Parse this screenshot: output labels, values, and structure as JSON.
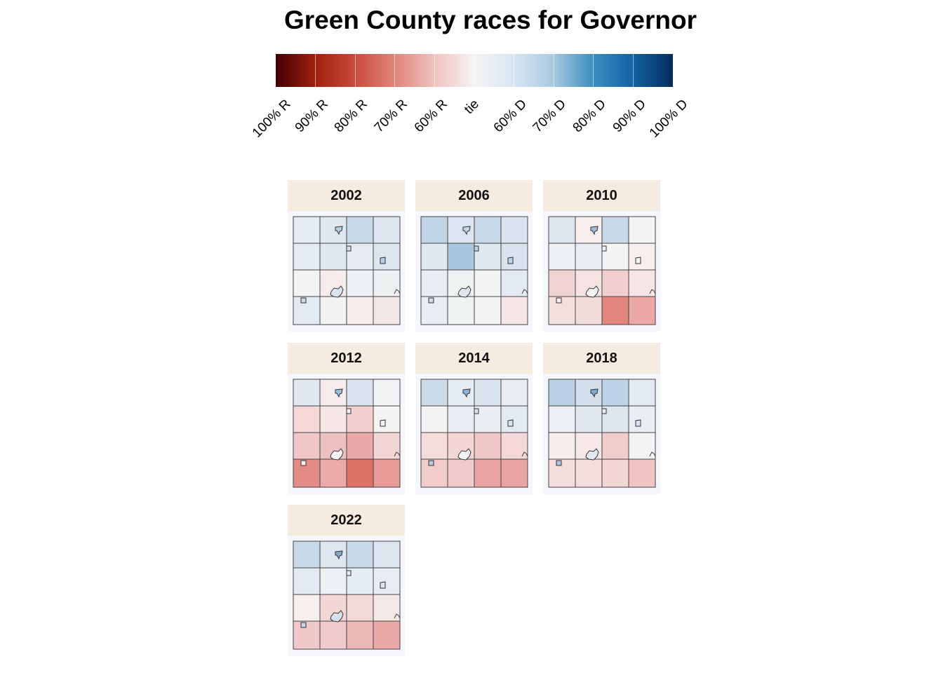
{
  "title": "Green County races for Governor",
  "legend": {
    "labels": [
      "100% R",
      "90% R",
      "80% R",
      "70% R",
      "60% R",
      "tie",
      "60% D",
      "70% D",
      "80% D",
      "90% D",
      "100% D"
    ],
    "colors": [
      "#420003",
      "#a1200f",
      "#d6604d",
      "#f4a582",
      "#f8dcd6",
      "#f4f4f4",
      "#d1e5f0",
      "#92c5de",
      "#2b8cbe",
      "#0a5c9c",
      "#053061"
    ]
  },
  "panels": [
    {
      "year": "2002",
      "cells": [
        [
          "#e5ecf3",
          "#dfe7f0",
          "#c5d9e8",
          "#dde6ef"
        ],
        [
          "#e6ecf3",
          "#dfe7ef",
          "#e7ecf3",
          "#dde5ee"
        ],
        [
          "#f4f4f4",
          "#f6ecec",
          "#eceff3",
          "#eef1f2"
        ],
        [
          "#e4eaf2",
          "#f1f2f3",
          "#f6eded",
          "#f3e6e7"
        ]
      ],
      "towns": [
        "#b7cfe4",
        "#d5e2ee",
        "#b9cee3",
        "#c9d9e8",
        "#d9e4ee"
      ]
    },
    {
      "year": "2006",
      "cells": [
        [
          "#c0d5e6",
          "#dbe5ef",
          "#c8d8e9",
          "#dbe4ee"
        ],
        [
          "#dfe7ef",
          "#a9c7de",
          "#e0e8f0",
          "#d9e3ee"
        ],
        [
          "#e8edf3",
          "#eef2f3",
          "#f3f4f4",
          "#e3eaf2"
        ],
        [
          "#e8eef3",
          "#eef2f3",
          "#f1f3f4",
          "#f4e6e7"
        ]
      ],
      "towns": [
        "#c4d7ea",
        "#c2d6ea",
        "#c0d4e8",
        "#cddbea",
        "#e0e8ef"
      ]
    },
    {
      "year": "2010",
      "cells": [
        [
          "#dce6ef",
          "#f6efee",
          "#c7d8e9",
          "#f4f4f4"
        ],
        [
          "#eef1f3",
          "#eaeef2",
          "#f4f4f4",
          "#f7efee"
        ],
        [
          "#f0d3d3",
          "#f4e3e2",
          "#f1cfcf",
          "#f5e6e5"
        ],
        [
          "#f3dfde",
          "#f2dcdb",
          "#e3867e",
          "#eba8a6"
        ]
      ],
      "towns": [
        "#9dbfde",
        "#f4f4f4",
        "#f2f4f4",
        "#f2ebeb",
        "#f4f4f4"
      ]
    },
    {
      "year": "2012",
      "cells": [
        [
          "#e2e8ef",
          "#f6ecec",
          "#dbe4ee",
          "#f2f3f4"
        ],
        [
          "#f4d8d7",
          "#f4e7e6",
          "#f1d0cf",
          "#f4f4f4"
        ],
        [
          "#f0c7c6",
          "#eec1c1",
          "#eaa8a8",
          "#f2d6d5"
        ],
        [
          "#e38c87",
          "#eba9a8",
          "#de7266",
          "#e89a96"
        ]
      ],
      "towns": [
        "#9dbfde",
        "#f4f4f4",
        "#f4f4f4",
        "#f4f4f4",
        "#f3f1f1"
      ]
    },
    {
      "year": "2014",
      "cells": [
        [
          "#cbdbe8",
          "#e5ecf3",
          "#d9e4ee",
          "#e8edf2"
        ],
        [
          "#f1f3f4",
          "#e7edf3",
          "#ebeff3",
          "#e4eaf2"
        ],
        [
          "#f4dcdb",
          "#f3d7d6",
          "#efc7c6",
          "#f3d8d7"
        ],
        [
          "#f2cccb",
          "#f1cbcb",
          "#e8a3a2",
          "#e9a5a4"
        ]
      ],
      "towns": [
        "#8fb6d9",
        "#dde6ef",
        "#d9e4ee",
        "#b8cfe3",
        "#f4f4f4"
      ]
    },
    {
      "year": "2018",
      "cells": [
        [
          "#b9cfe3",
          "#d3e0ec",
          "#bed3e7",
          "#e3e9f1"
        ],
        [
          "#eceff3",
          "#e1e8f0",
          "#dde6ef",
          "#e9eef3"
        ],
        [
          "#f6eded",
          "#f6e8e7",
          "#f0cccb",
          "#f2f3f4"
        ],
        [
          "#f4dedd",
          "#f3dcdb",
          "#f2d6d5",
          "#efc4c3"
        ]
      ],
      "towns": [
        "#7ea9d2",
        "#e4eaf1",
        "#d9e4ee",
        "#a9c6e1",
        "#e1e8f0"
      ]
    },
    {
      "year": "2022",
      "cells": [
        [
          "#c7d8e8",
          "#dfe6ef",
          "#c8d9e9",
          "#dde6ef"
        ],
        [
          "#e3eaf2",
          "#eef1f3",
          "#e6ecf3",
          "#e8edf3"
        ],
        [
          "#f7efee",
          "#f3d7d6",
          "#f2d9d8",
          "#f5e9e8"
        ],
        [
          "#efc8c7",
          "#f1cbcb",
          "#ecb8b7",
          "#e8a9a7"
        ]
      ],
      "towns": [
        "#7ea9d2",
        "#e6ecf3",
        "#dde6ef",
        "#c7d8e8",
        "#d6e2ee"
      ]
    }
  ]
}
